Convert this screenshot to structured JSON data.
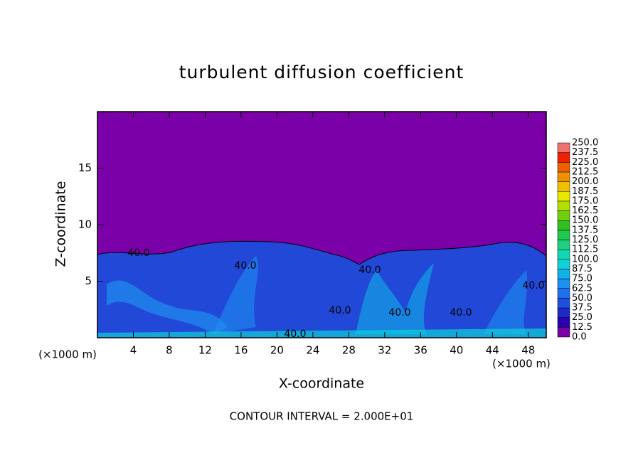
{
  "chart_data": {
    "type": "contour",
    "title": "turbulent diffusion coefficient",
    "x_label": "X-coordinate",
    "y_label": "Z-coordinate",
    "x_unit": "(×1000 m)",
    "x_unit_right": "(×1000 m)",
    "footer": "CONTOUR INTERVAL = 2.000E+01",
    "xlim": [
      0,
      50
    ],
    "ylim": [
      0,
      20
    ],
    "xticks": [
      4,
      8,
      12,
      16,
      20,
      24,
      28,
      32,
      36,
      40,
      44,
      48
    ],
    "yticks": [
      5,
      10,
      15
    ],
    "contour_labels": [
      "40.0",
      "40.0",
      "40.0",
      "40.0",
      "40.0",
      "40.0",
      "40.0",
      "40.0"
    ],
    "levels": [
      {
        "value": 0,
        "label": "0.0"
      },
      {
        "value": 12.5,
        "label": "12.5"
      },
      {
        "value": 25,
        "label": "25.0"
      },
      {
        "value": 37.5,
        "label": "37.5"
      },
      {
        "value": 50,
        "label": "50.0"
      },
      {
        "value": 62.5,
        "label": "62.5"
      },
      {
        "value": 75,
        "label": "75.0"
      },
      {
        "value": 87.5,
        "label": "87.5"
      },
      {
        "value": 100,
        "label": "100.0"
      },
      {
        "value": 112.5,
        "label": "112.5"
      },
      {
        "value": 125,
        "label": "125.0"
      },
      {
        "value": 137.5,
        "label": "137.5"
      },
      {
        "value": 150,
        "label": "150.0"
      },
      {
        "value": 162.5,
        "label": "162.5"
      },
      {
        "value": 175,
        "label": "175.0"
      },
      {
        "value": 187.5,
        "label": "187.5"
      },
      {
        "value": 200,
        "label": "200.0"
      },
      {
        "value": 212.5,
        "label": "212.5"
      },
      {
        "value": 225,
        "label": "225.0"
      },
      {
        "value": 237.5,
        "label": "237.5"
      },
      {
        "value": 250,
        "label": "250.0"
      }
    ],
    "colors": [
      "#7a00a8",
      "#2a00b0",
      "#1e28c8",
      "#1e50e0",
      "#1e70f0",
      "#1e90f0",
      "#10b0e8",
      "#10d0d8",
      "#10d8b0",
      "#20d080",
      "#20c850",
      "#30c020",
      "#70d010",
      "#b0e000",
      "#e8e800",
      "#f0c000",
      "#f09000",
      "#f06000",
      "#f02000",
      "#f07070"
    ]
  }
}
